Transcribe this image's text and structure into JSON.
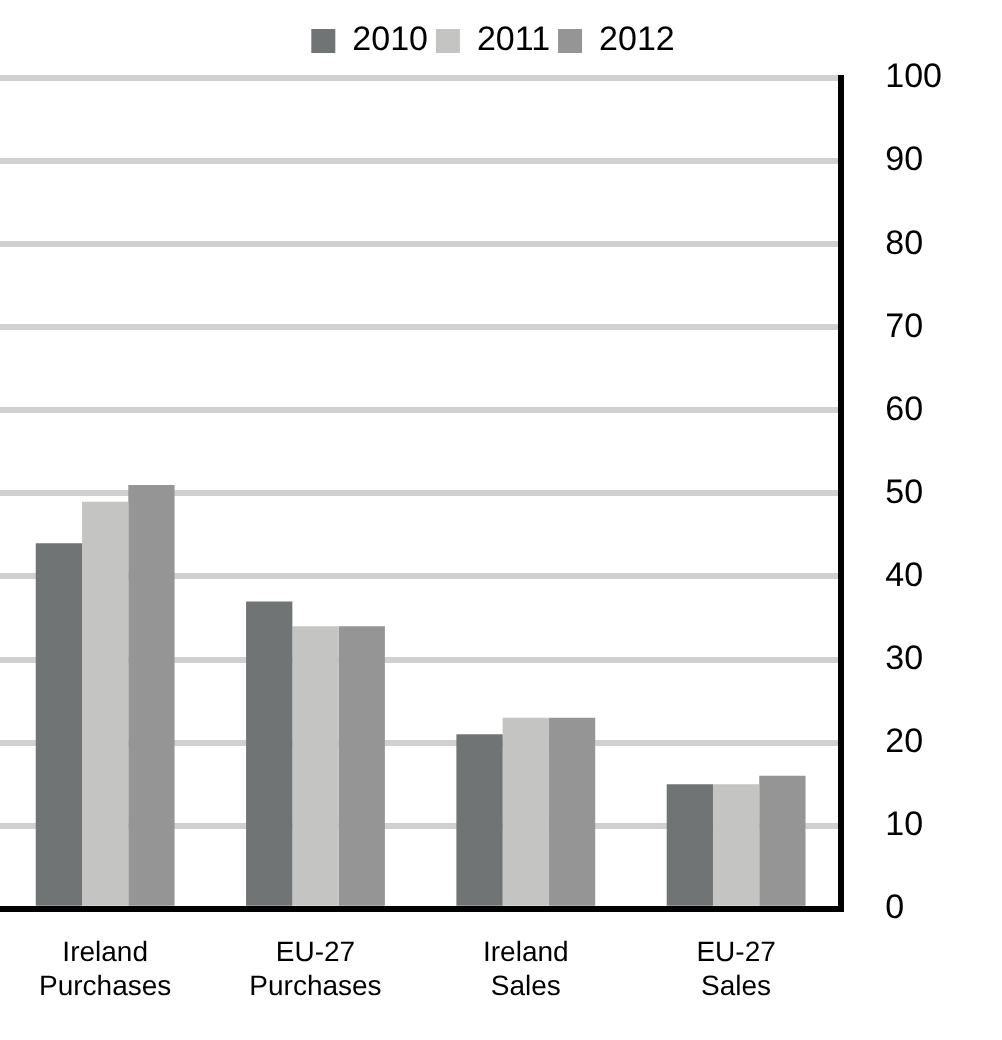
{
  "chart_data": {
    "type": "bar",
    "categories": [
      "Ireland Purchases",
      "EU-27 Purchases",
      "Ireland Sales",
      "EU-27 Sales"
    ],
    "series": [
      {
        "name": "2010",
        "color": "#717474",
        "values": [
          44,
          37,
          21,
          15
        ]
      },
      {
        "name": "2011",
        "color": "#c4c4c2",
        "values": [
          49,
          34,
          23,
          15
        ]
      },
      {
        "name": "2012",
        "color": "#959595",
        "values": [
          51,
          34,
          23,
          16
        ]
      }
    ],
    "ylim": [
      0,
      100
    ],
    "yticks": [
      0,
      10,
      20,
      30,
      40,
      50,
      60,
      70,
      80,
      90,
      100
    ],
    "grid": "y",
    "legend": "top"
  }
}
